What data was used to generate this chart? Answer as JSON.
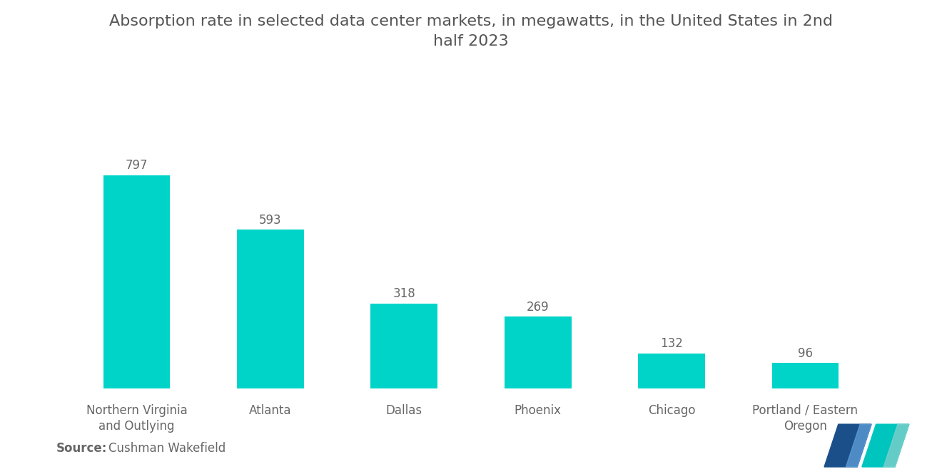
{
  "title": "Absorption rate in selected data center markets, in megawatts, in the United States in 2nd\nhalf 2023",
  "categories": [
    "Northern Virginia\nand Outlying",
    "Atlanta",
    "Dallas",
    "Phoenix",
    "Chicago",
    "Portland / Eastern\nOregon"
  ],
  "values": [
    797,
    593,
    318,
    269,
    132,
    96
  ],
  "bar_color": "#00D4C8",
  "background_color": "#ffffff",
  "title_color": "#555555",
  "label_color": "#666666",
  "value_color": "#666666",
  "source_bold": "Source:",
  "source_text": "Cushman Wakefield",
  "title_fontsize": 16,
  "value_fontsize": 12,
  "label_fontsize": 12,
  "source_fontsize": 12,
  "ylim": [
    0,
    920
  ],
  "bar_width": 0.5
}
